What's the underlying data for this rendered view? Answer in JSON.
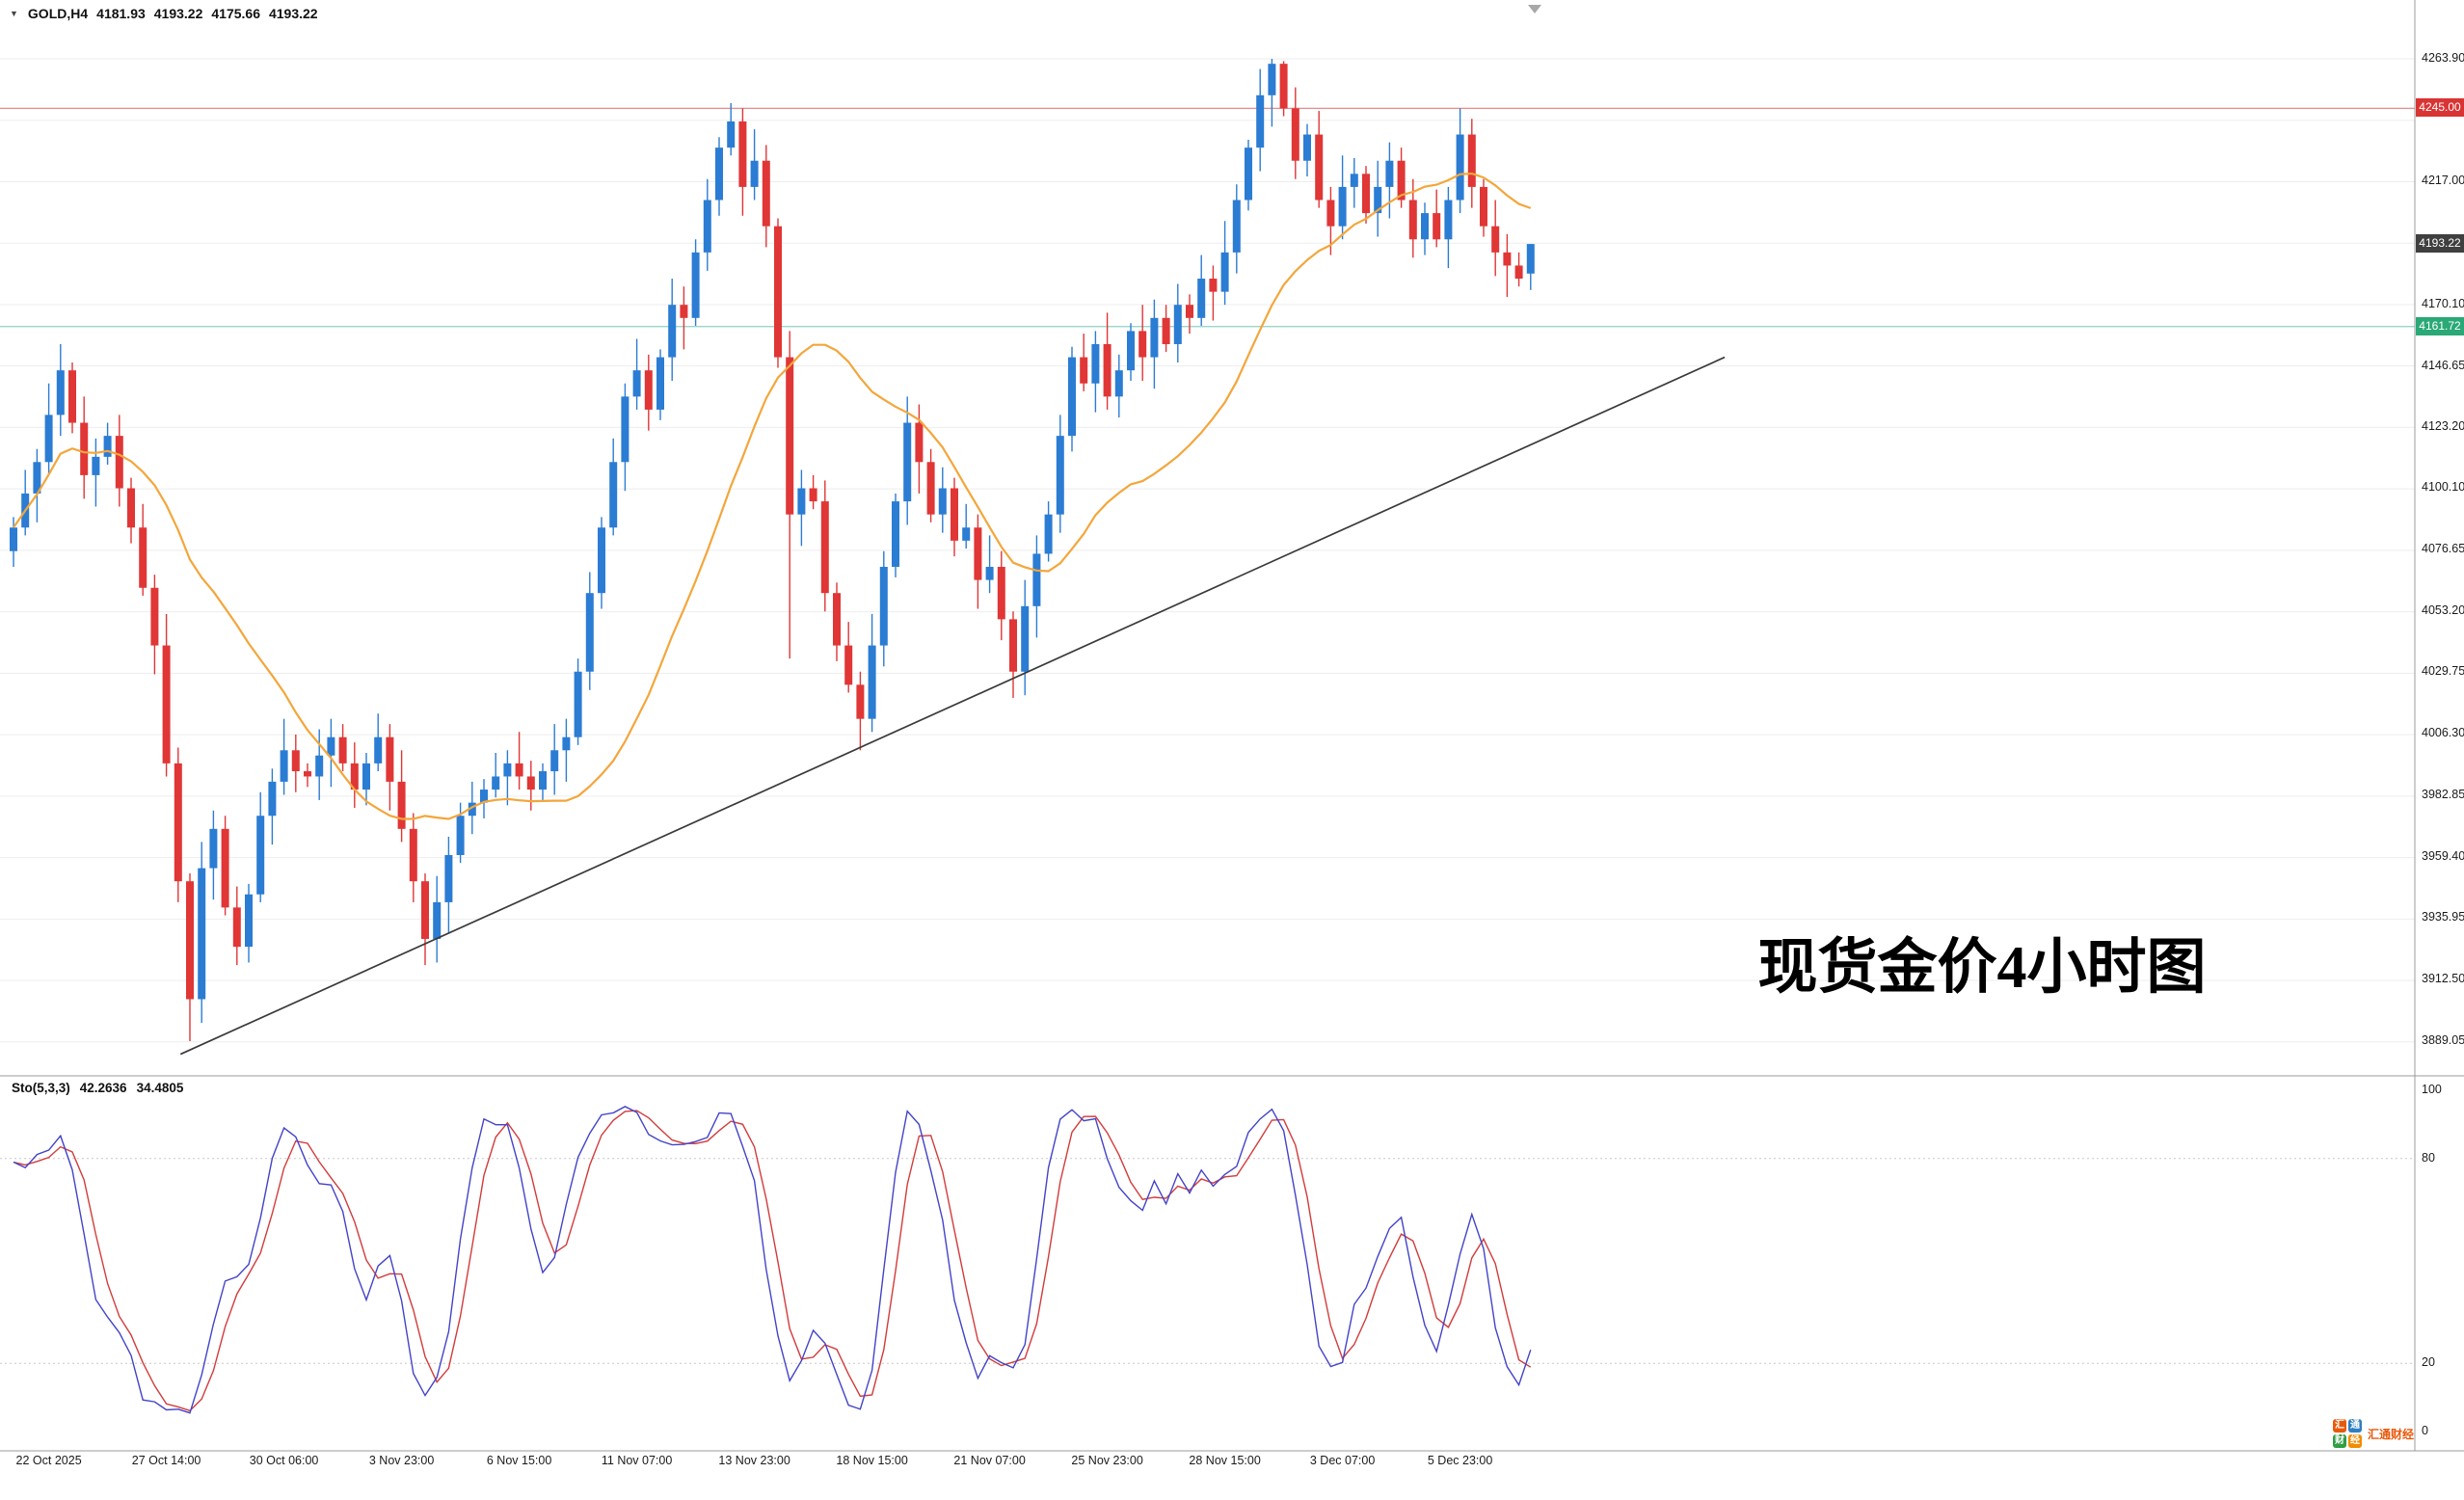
{
  "header": {
    "symbol": "GOLD,H4",
    "open": "4181.93",
    "high": "4193.22",
    "low": "4175.66",
    "close": "4193.22"
  },
  "annotation": {
    "text": "现货金价4小时图"
  },
  "price_axis": {
    "labels": [
      {
        "text": "4263.90",
        "price": 4263.9
      },
      {
        "text": "4217.00",
        "price": 4217.0
      },
      {
        "text": "4170.10",
        "price": 4170.1
      },
      {
        "text": "4146.65",
        "price": 4146.65
      },
      {
        "text": "4123.20",
        "price": 4123.2
      },
      {
        "text": "4100.10",
        "price": 4100.1
      },
      {
        "text": "4076.65",
        "price": 4076.65
      },
      {
        "text": "4053.20",
        "price": 4053.2
      },
      {
        "text": "4029.75",
        "price": 4029.75
      },
      {
        "text": "4006.30",
        "price": 4006.3
      },
      {
        "text": "3982.85",
        "price": 3982.85
      },
      {
        "text": "3959.40",
        "price": 3959.4
      },
      {
        "text": "3935.95",
        "price": 3935.95
      },
      {
        "text": "3912.50",
        "price": 3912.5
      },
      {
        "text": "3889.05",
        "price": 3889.05
      }
    ],
    "badges": [
      {
        "text": "4245.00",
        "price": 4245.0,
        "bg": "#d93434",
        "fg": "#ffffff",
        "name": "resistance-price-badge"
      },
      {
        "text": "4193.22",
        "price": 4193.22,
        "bg": "#3f3f3f",
        "fg": "#ffffff",
        "name": "current-price-badge"
      },
      {
        "text": "4161.72",
        "price": 4161.72,
        "bg": "#2aa876",
        "fg": "#ffffff",
        "name": "support-price-badge"
      }
    ]
  },
  "hlines": [
    {
      "price": 4245.0,
      "color": "#e88b8b",
      "width": 1.3,
      "name": "resistance-hline"
    },
    {
      "price": 4161.72,
      "color": "#8fd0c2",
      "width": 1.3,
      "name": "support-hline"
    }
  ],
  "time_axis": {
    "labels": [
      {
        "text": "22 Oct 2025",
        "index": 3
      },
      {
        "text": "27 Oct 14:00",
        "index": 13
      },
      {
        "text": "30 Oct 06:00",
        "index": 23
      },
      {
        "text": "3 Nov 23:00",
        "index": 33
      },
      {
        "text": "6 Nov 15:00",
        "index": 43
      },
      {
        "text": "11 Nov 07:00",
        "index": 53
      },
      {
        "text": "13 Nov 23:00",
        "index": 63
      },
      {
        "text": "18 Nov 15:00",
        "index": 73
      },
      {
        "text": "21 Nov 07:00",
        "index": 83
      },
      {
        "text": "25 Nov 23:00",
        "index": 93
      },
      {
        "text": "28 Nov 15:00",
        "index": 103
      },
      {
        "text": "3 Dec 07:00",
        "index": 113
      },
      {
        "text": "5 Dec 23:00",
        "index": 123
      }
    ]
  },
  "sto_panel": {
    "label": "Sto(5,3,3)",
    "k_value": "42.2636",
    "d_value": "34.4805",
    "k_period": 5,
    "slowing": 3,
    "d_period": 3,
    "scale_labels": [
      "100",
      "80",
      "20",
      "0"
    ],
    "levels": [
      80,
      20
    ],
    "k_color": "#4343c8",
    "d_color": "#d23b3b"
  },
  "watermark": {
    "tiles": [
      {
        "char": "汇",
        "bg": "#e8590c"
      },
      {
        "char": "通",
        "bg": "#2f7fc0"
      },
      {
        "char": "财",
        "bg": "#2f9e44"
      },
      {
        "char": "经",
        "bg": "#f08c00"
      }
    ],
    "text": "汇通财经",
    "text_color": "#e8590c"
  },
  "chart_data": {
    "type": "candlestick",
    "symbol": "GOLD",
    "timeframe": "H4",
    "title": "现货金价4小时图",
    "y_range": [
      3889.05,
      4263.9
    ],
    "grid": {
      "top": 4263.9,
      "step": 23.45,
      "count": 17
    },
    "up_color": "#2b7cd3",
    "down_color": "#e03636",
    "ma": {
      "period": 20,
      "color": "#f3a63b"
    },
    "trendline": {
      "from_index": 14.2,
      "from_price": 3884,
      "to_index": 145.5,
      "to_price": 4150,
      "color": "#3a3a3a"
    },
    "candles_ohlc": [
      [
        4076,
        4089,
        4070,
        4085
      ],
      [
        4085,
        4107,
        4082,
        4098
      ],
      [
        4098,
        4115,
        4087,
        4110
      ],
      [
        4110,
        4140,
        4105,
        4128
      ],
      [
        4128,
        4155,
        4120,
        4145
      ],
      [
        4145,
        4148,
        4121,
        4125
      ],
      [
        4125,
        4135,
        4096,
        4105
      ],
      [
        4105,
        4119,
        4093,
        4112
      ],
      [
        4112,
        4125,
        4109,
        4120
      ],
      [
        4120,
        4128,
        4093,
        4100
      ],
      [
        4100,
        4104,
        4079,
        4085
      ],
      [
        4085,
        4094,
        4059,
        4062
      ],
      [
        4062,
        4067,
        4029,
        4040
      ],
      [
        4040,
        4052,
        3990,
        3995
      ],
      [
        3995,
        4001,
        3942,
        3950
      ],
      [
        3950,
        3953,
        3889,
        3905
      ],
      [
        3905,
        3965,
        3896,
        3955
      ],
      [
        3955,
        3977,
        3943,
        3970
      ],
      [
        3970,
        3975,
        3937,
        3940
      ],
      [
        3940,
        3948,
        3918,
        3925
      ],
      [
        3925,
        3949,
        3919,
        3945
      ],
      [
        3945,
        3984,
        3942,
        3975
      ],
      [
        3975,
        3993,
        3964,
        3988
      ],
      [
        3988,
        4012,
        3983,
        4000
      ],
      [
        4000,
        4006,
        3984,
        3992
      ],
      [
        3992,
        3995,
        3986,
        3990
      ],
      [
        3990,
        4008,
        3981,
        3998
      ],
      [
        3998,
        4012,
        3986,
        4005
      ],
      [
        4005,
        4010,
        3992,
        3995
      ],
      [
        3995,
        4003,
        3978,
        3985
      ],
      [
        3985,
        3999,
        3979,
        3995
      ],
      [
        3995,
        4014,
        3992,
        4005
      ],
      [
        4005,
        4010,
        3977,
        3988
      ],
      [
        3988,
        4000,
        3965,
        3970
      ],
      [
        3970,
        3976,
        3942,
        3950
      ],
      [
        3950,
        3953,
        3918,
        3928
      ],
      [
        3928,
        3952,
        3919,
        3942
      ],
      [
        3942,
        3967,
        3930,
        3960
      ],
      [
        3960,
        3980,
        3957,
        3975
      ],
      [
        3975,
        3988,
        3968,
        3980
      ],
      [
        3980,
        3989,
        3974,
        3985
      ],
      [
        3985,
        3999,
        3982,
        3990
      ],
      [
        3990,
        4000,
        3979,
        3995
      ],
      [
        3995,
        4007,
        3985,
        3990
      ],
      [
        3990,
        3996,
        3977,
        3985
      ],
      [
        3985,
        3995,
        3981,
        3992
      ],
      [
        3992,
        4010,
        3983,
        4000
      ],
      [
        4000,
        4012,
        3988,
        4005
      ],
      [
        4005,
        4035,
        4002,
        4030
      ],
      [
        4030,
        4068,
        4023,
        4060
      ],
      [
        4060,
        4089,
        4054,
        4085
      ],
      [
        4085,
        4119,
        4082,
        4110
      ],
      [
        4110,
        4140,
        4099,
        4135
      ],
      [
        4135,
        4157,
        4130,
        4145
      ],
      [
        4145,
        4151,
        4122,
        4130
      ],
      [
        4130,
        4153,
        4126,
        4150
      ],
      [
        4150,
        4180,
        4141,
        4170
      ],
      [
        4170,
        4177,
        4153,
        4165
      ],
      [
        4165,
        4195,
        4162,
        4190
      ],
      [
        4190,
        4218,
        4183,
        4210
      ],
      [
        4210,
        4234,
        4204,
        4230
      ],
      [
        4230,
        4247,
        4227,
        4240
      ],
      [
        4240,
        4245,
        4204,
        4215
      ],
      [
        4215,
        4237,
        4210,
        4225
      ],
      [
        4225,
        4231,
        4192,
        4200
      ],
      [
        4200,
        4203,
        4146,
        4150
      ],
      [
        4150,
        4160,
        4035,
        4090
      ],
      [
        4090,
        4107,
        4078,
        4100
      ],
      [
        4100,
        4105,
        4092,
        4095
      ],
      [
        4095,
        4103,
        4053,
        4060
      ],
      [
        4060,
        4064,
        4034,
        4040
      ],
      [
        4040,
        4049,
        4022,
        4025
      ],
      [
        4025,
        4030,
        4000,
        4012
      ],
      [
        4012,
        4052,
        4007,
        4040
      ],
      [
        4040,
        4076,
        4032,
        4070
      ],
      [
        4070,
        4098,
        4066,
        4095
      ],
      [
        4095,
        4135,
        4086,
        4125
      ],
      [
        4125,
        4132,
        4098,
        4110
      ],
      [
        4110,
        4115,
        4087,
        4090
      ],
      [
        4090,
        4108,
        4083,
        4100
      ],
      [
        4100,
        4104,
        4074,
        4080
      ],
      [
        4080,
        4094,
        4077,
        4085
      ],
      [
        4085,
        4090,
        4054,
        4065
      ],
      [
        4065,
        4082,
        4060,
        4070
      ],
      [
        4070,
        4076,
        4042,
        4050
      ],
      [
        4050,
        4053,
        4020,
        4030
      ],
      [
        4030,
        4065,
        4021,
        4055
      ],
      [
        4055,
        4082,
        4043,
        4075
      ],
      [
        4075,
        4095,
        4072,
        4090
      ],
      [
        4090,
        4128,
        4083,
        4120
      ],
      [
        4120,
        4154,
        4114,
        4150
      ],
      [
        4150,
        4159,
        4137,
        4140
      ],
      [
        4140,
        4160,
        4129,
        4155
      ],
      [
        4155,
        4167,
        4130,
        4135
      ],
      [
        4135,
        4151,
        4127,
        4145
      ],
      [
        4145,
        4163,
        4141,
        4160
      ],
      [
        4160,
        4170,
        4141,
        4150
      ],
      [
        4150,
        4172,
        4138,
        4165
      ],
      [
        4165,
        4170,
        4152,
        4155
      ],
      [
        4155,
        4178,
        4148,
        4170
      ],
      [
        4170,
        4174,
        4159,
        4165
      ],
      [
        4165,
        4189,
        4162,
        4180
      ],
      [
        4180,
        4185,
        4164,
        4175
      ],
      [
        4175,
        4202,
        4170,
        4190
      ],
      [
        4190,
        4216,
        4182,
        4210
      ],
      [
        4210,
        4233,
        4206,
        4230
      ],
      [
        4230,
        4260,
        4221,
        4250
      ],
      [
        4250,
        4263.9,
        4238,
        4262
      ],
      [
        4262,
        4263,
        4242,
        4245
      ],
      [
        4245,
        4253,
        4218,
        4225
      ],
      [
        4225,
        4239,
        4219,
        4235
      ],
      [
        4235,
        4244,
        4207,
        4210
      ],
      [
        4210,
        4215,
        4189,
        4200
      ],
      [
        4200,
        4227,
        4195,
        4215
      ],
      [
        4215,
        4226,
        4207,
        4220
      ],
      [
        4220,
        4223,
        4201,
        4205
      ],
      [
        4205,
        4225,
        4196,
        4215
      ],
      [
        4215,
        4232,
        4203,
        4225
      ],
      [
        4225,
        4230,
        4207,
        4210
      ],
      [
        4210,
        4218,
        4188,
        4195
      ],
      [
        4195,
        4209,
        4189,
        4205
      ],
      [
        4205,
        4214,
        4192,
        4195
      ],
      [
        4195,
        4215,
        4184,
        4210
      ],
      [
        4210,
        4245,
        4205,
        4235
      ],
      [
        4235,
        4241,
        4207,
        4215
      ],
      [
        4215,
        4218,
        4196,
        4200
      ],
      [
        4200,
        4210,
        4181,
        4190
      ],
      [
        4190,
        4197,
        4173,
        4185
      ],
      [
        4185,
        4190,
        4177,
        4180
      ],
      [
        4181.93,
        4193.22,
        4175.66,
        4193.22
      ]
    ]
  }
}
